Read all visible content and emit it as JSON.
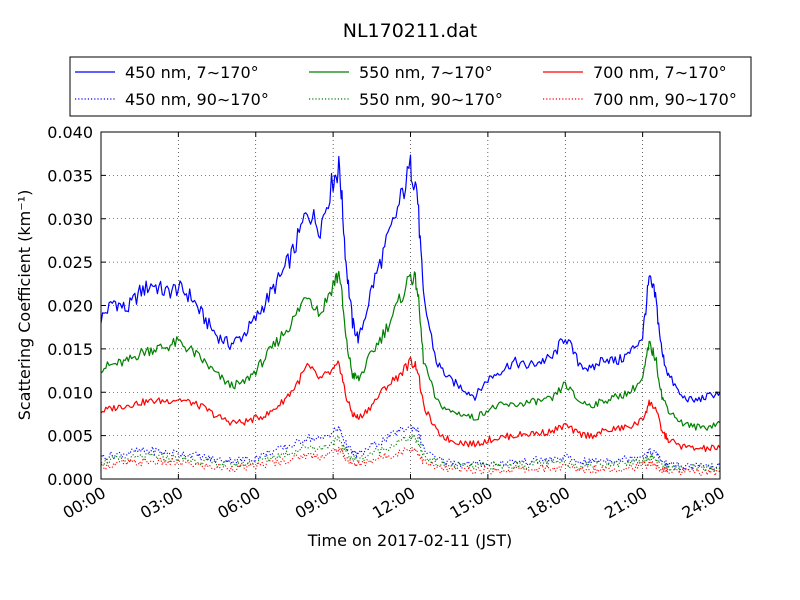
{
  "chart_data": {
    "type": "line",
    "title": "NL170211.dat",
    "xlabel": "Time on 2017-02-11 (JST)",
    "ylabel": "Scattering Coefficient (km⁻¹)",
    "xlim": [
      "00:00",
      "24:00"
    ],
    "ylim": [
      0.0,
      0.04
    ],
    "x_ticks": [
      "00:00",
      "03:00",
      "06:00",
      "09:00",
      "12:00",
      "15:00",
      "18:00",
      "21:00",
      "24:00"
    ],
    "y_ticks": [
      "0.000",
      "0.005",
      "0.010",
      "0.015",
      "0.020",
      "0.025",
      "0.030",
      "0.035",
      "0.040"
    ],
    "grid": true,
    "legend_position": "top, outside plot, three columns",
    "x_hours": [
      0,
      0.5,
      1,
      1.5,
      2,
      2.5,
      3,
      3.5,
      4,
      4.5,
      5,
      5.5,
      6,
      6.5,
      7,
      7.5,
      8,
      8.5,
      9,
      9.25,
      9.5,
      9.75,
      10,
      10.5,
      11,
      11.5,
      12,
      12.25,
      12.5,
      13,
      13.5,
      14,
      14.5,
      15,
      15.5,
      16,
      16.5,
      17,
      17.5,
      18,
      18.5,
      19,
      19.5,
      20,
      20.5,
      21,
      21.25,
      21.5,
      21.75,
      22,
      22.5,
      23,
      23.5,
      24
    ],
    "series": [
      {
        "name": "450 nm, 7∼170°",
        "color": "#0000ff",
        "style": "solid",
        "values": [
          0.0185,
          0.0205,
          0.0195,
          0.0215,
          0.0225,
          0.0215,
          0.022,
          0.021,
          0.0185,
          0.0165,
          0.0155,
          0.0165,
          0.0185,
          0.021,
          0.0235,
          0.0265,
          0.031,
          0.029,
          0.0345,
          0.036,
          0.025,
          0.018,
          0.016,
          0.022,
          0.0265,
          0.031,
          0.036,
          0.0335,
          0.021,
          0.0135,
          0.0115,
          0.0105,
          0.0095,
          0.0115,
          0.0125,
          0.0135,
          0.013,
          0.0135,
          0.014,
          0.0165,
          0.0135,
          0.0125,
          0.014,
          0.0135,
          0.0145,
          0.0165,
          0.023,
          0.021,
          0.0145,
          0.012,
          0.0095,
          0.009,
          0.0095,
          0.01
        ]
      },
      {
        "name": "550 nm, 7∼170°",
        "color": "#008000",
        "style": "solid",
        "values": [
          0.0128,
          0.0132,
          0.0135,
          0.0145,
          0.015,
          0.0152,
          0.0158,
          0.0148,
          0.0135,
          0.012,
          0.0108,
          0.011,
          0.0125,
          0.0145,
          0.0165,
          0.0185,
          0.0215,
          0.019,
          0.0225,
          0.0238,
          0.016,
          0.012,
          0.0115,
          0.0145,
          0.017,
          0.02,
          0.0235,
          0.0225,
          0.0138,
          0.009,
          0.0078,
          0.0075,
          0.007,
          0.008,
          0.0085,
          0.0085,
          0.0088,
          0.009,
          0.0092,
          0.011,
          0.009,
          0.0085,
          0.009,
          0.0095,
          0.01,
          0.0115,
          0.0155,
          0.014,
          0.0095,
          0.008,
          0.0065,
          0.006,
          0.006,
          0.0065
        ]
      },
      {
        "name": "700 nm, 7∼170°",
        "color": "#ff0000",
        "style": "solid",
        "values": [
          0.0078,
          0.0082,
          0.0085,
          0.0088,
          0.009,
          0.009,
          0.0092,
          0.0088,
          0.0082,
          0.0072,
          0.0066,
          0.0065,
          0.007,
          0.0075,
          0.0088,
          0.0105,
          0.013,
          0.0115,
          0.0125,
          0.0132,
          0.0095,
          0.0075,
          0.007,
          0.0085,
          0.0105,
          0.0118,
          0.0135,
          0.013,
          0.0085,
          0.0055,
          0.0045,
          0.0042,
          0.004,
          0.0045,
          0.0048,
          0.005,
          0.0052,
          0.0053,
          0.0055,
          0.0062,
          0.0052,
          0.005,
          0.0055,
          0.0058,
          0.006,
          0.0068,
          0.0088,
          0.0082,
          0.0055,
          0.0045,
          0.0038,
          0.0035,
          0.0035,
          0.0036
        ]
      },
      {
        "name": "450 nm, 90∼170°",
        "color": "#0000ff",
        "style": "dotted",
        "values": [
          0.0025,
          0.0028,
          0.003,
          0.0032,
          0.0033,
          0.003,
          0.003,
          0.0028,
          0.0025,
          0.0022,
          0.0022,
          0.0022,
          0.0025,
          0.003,
          0.0035,
          0.004,
          0.0048,
          0.0045,
          0.0055,
          0.0058,
          0.004,
          0.003,
          0.0028,
          0.0038,
          0.0045,
          0.0055,
          0.006,
          0.0058,
          0.0035,
          0.0022,
          0.002,
          0.0018,
          0.0017,
          0.0018,
          0.0018,
          0.002,
          0.002,
          0.0022,
          0.0022,
          0.0025,
          0.002,
          0.002,
          0.0022,
          0.0022,
          0.0024,
          0.0028,
          0.0032,
          0.003,
          0.002,
          0.0016,
          0.0015,
          0.0014,
          0.0014,
          0.0015
        ]
      },
      {
        "name": "550 nm, 90∼170°",
        "color": "#008000",
        "style": "dotted",
        "values": [
          0.002,
          0.0022,
          0.0023,
          0.0025,
          0.0026,
          0.0024,
          0.0024,
          0.0022,
          0.002,
          0.0018,
          0.0017,
          0.0017,
          0.002,
          0.0024,
          0.0028,
          0.0032,
          0.0038,
          0.0035,
          0.0042,
          0.0046,
          0.0032,
          0.0024,
          0.0022,
          0.003,
          0.0035,
          0.0042,
          0.0048,
          0.0045,
          0.0028,
          0.0018,
          0.0016,
          0.0015,
          0.0014,
          0.0015,
          0.0015,
          0.0016,
          0.0016,
          0.0018,
          0.0018,
          0.002,
          0.0016,
          0.0016,
          0.0018,
          0.0018,
          0.0019,
          0.0022,
          0.0026,
          0.0024,
          0.0016,
          0.0013,
          0.0012,
          0.0012,
          0.0012,
          0.0012
        ]
      },
      {
        "name": "700 nm, 90∼170°",
        "color": "#ff0000",
        "style": "dotted",
        "values": [
          0.0015,
          0.0017,
          0.0018,
          0.0019,
          0.002,
          0.0019,
          0.0019,
          0.0017,
          0.0015,
          0.0013,
          0.0013,
          0.0013,
          0.0015,
          0.0018,
          0.002,
          0.0024,
          0.0028,
          0.0026,
          0.0031,
          0.0034,
          0.0024,
          0.0018,
          0.0016,
          0.0022,
          0.0026,
          0.003,
          0.0035,
          0.0033,
          0.002,
          0.0013,
          0.0011,
          0.001,
          0.001,
          0.001,
          0.001,
          0.0011,
          0.0011,
          0.0012,
          0.0012,
          0.0014,
          0.0011,
          0.0011,
          0.0012,
          0.0012,
          0.0013,
          0.0015,
          0.0018,
          0.0016,
          0.0011,
          0.0009,
          0.0008,
          0.0008,
          0.0008,
          0.0008
        ]
      }
    ],
    "legend_order": [
      0,
      1,
      2,
      3,
      4,
      5
    ]
  }
}
